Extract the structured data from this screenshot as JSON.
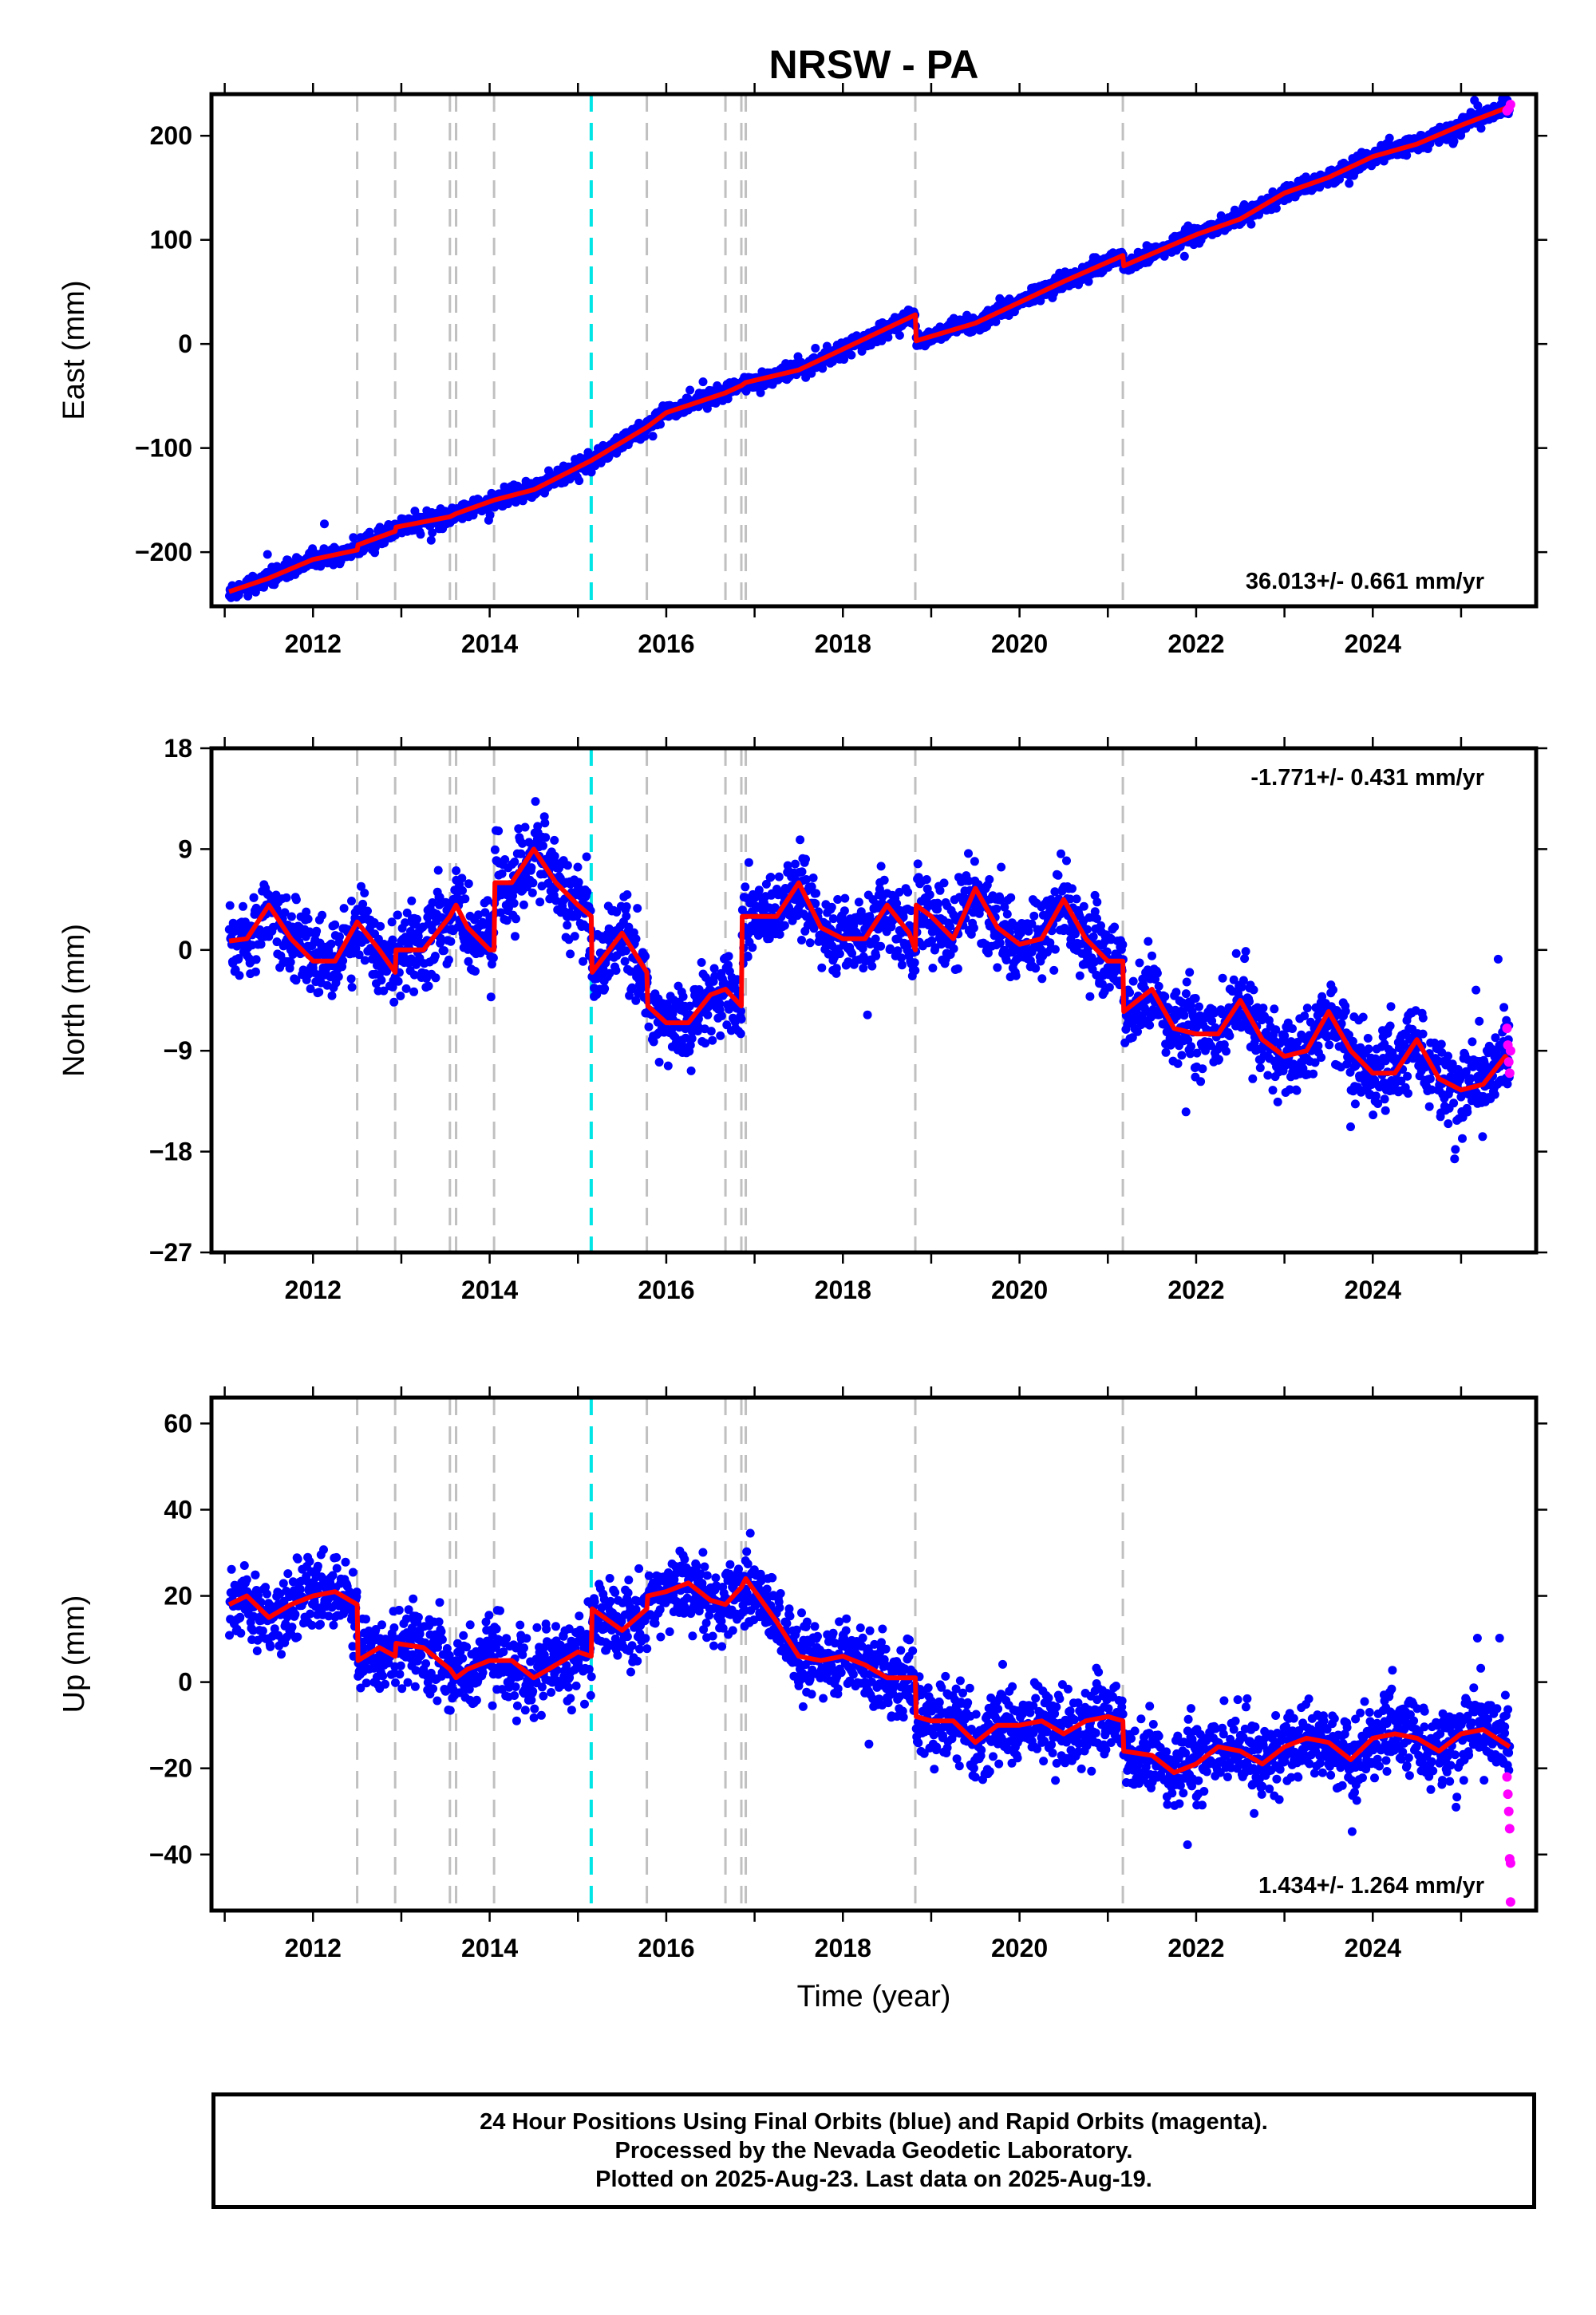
{
  "title": "NRSW - PA",
  "colors": {
    "final_orbits": "#0000ff",
    "rapid_orbits": "#ff00ff",
    "model": "#ff0000",
    "antenna_change": "#00e5e5",
    "equipment_change": "#c0c0c0"
  },
  "footer": {
    "line1": "24 Hour Positions Using Final Orbits (blue) and Rapid Orbits (magenta).",
    "line2": "Processed by the Nevada Geodetic Laboratory.",
    "line3": "Plotted on 2025-Aug-23. Last data on 2025-Aug-19."
  },
  "chart_data": [
    {
      "type": "scatter",
      "component": "East",
      "title": "NRSW - PA",
      "xlabel": "",
      "ylabel": "East (mm)",
      "xlim": [
        2010.85,
        2025.85
      ],
      "ylim": [
        -252,
        240
      ],
      "xticks": [
        "2012",
        "2014",
        "2016",
        "2018",
        "2020",
        "2022",
        "2024"
      ],
      "yticks": [
        "200",
        "100",
        "0",
        "−100",
        "−200"
      ],
      "ytick_values": [
        200,
        100,
        0,
        -100,
        -200
      ],
      "rate_label": "36.013+/- 0.661 mm/yr",
      "rate_position": "bottom-right",
      "data_start": 2011.05,
      "data_end": 2025.55,
      "vlines_gray": [
        2012.5,
        2012.93,
        2013.55,
        2013.62,
        2014.05,
        2015.78,
        2016.67,
        2016.85,
        2016.9,
        2018.82,
        2021.17
      ],
      "vlines_cyan": [
        2015.15
      ],
      "model_points": [
        [
          2011.05,
          -238
        ],
        [
          2011.5,
          -225
        ],
        [
          2012.0,
          -207
        ],
        [
          2012.5,
          -198
        ],
        [
          2012.51,
          -193
        ],
        [
          2012.93,
          -180
        ],
        [
          2012.94,
          -176
        ],
        [
          2013.55,
          -166
        ],
        [
          2013.62,
          -163
        ],
        [
          2014.05,
          -150
        ],
        [
          2014.5,
          -140
        ],
        [
          2015.15,
          -112
        ],
        [
          2015.78,
          -80
        ],
        [
          2016.0,
          -66
        ],
        [
          2016.67,
          -47
        ],
        [
          2016.85,
          -40
        ],
        [
          2016.9,
          -37
        ],
        [
          2017.5,
          -25
        ],
        [
          2018.0,
          -5
        ],
        [
          2018.82,
          28
        ],
        [
          2018.83,
          3
        ],
        [
          2019.5,
          20
        ],
        [
          2020.0,
          40
        ],
        [
          2020.5,
          60
        ],
        [
          2021.17,
          85
        ],
        [
          2021.18,
          75
        ],
        [
          2022.0,
          105
        ],
        [
          2022.5,
          120
        ],
        [
          2023.0,
          145
        ],
        [
          2023.5,
          160
        ],
        [
          2024.0,
          180
        ],
        [
          2024.5,
          192
        ],
        [
          2025.0,
          210
        ],
        [
          2025.55,
          228
        ]
      ],
      "scatter_sigma": 4,
      "rapid_points": [
        [
          2025.52,
          224
        ],
        [
          2025.54,
          226
        ],
        [
          2025.56,
          230
        ]
      ]
    },
    {
      "type": "scatter",
      "component": "North",
      "xlabel": "",
      "ylabel": "North (mm)",
      "xlim": [
        2010.85,
        2025.85
      ],
      "ylim": [
        -27,
        18
      ],
      "xticks": [
        "2012",
        "2014",
        "2016",
        "2018",
        "2020",
        "2022",
        "2024"
      ],
      "yticks": [
        "18",
        "9",
        "0",
        "−9",
        "−18",
        "−27"
      ],
      "ytick_values": [
        18,
        9,
        0,
        -9,
        -18,
        -27
      ],
      "rate_label": "-1.771+/- 0.431 mm/yr",
      "rate_position": "top-right",
      "data_start": 2011.05,
      "data_end": 2025.55,
      "vlines_gray": [
        2012.5,
        2012.93,
        2013.55,
        2013.62,
        2014.05,
        2015.78,
        2016.67,
        2016.85,
        2016.9,
        2018.82,
        2021.17
      ],
      "vlines_cyan": [
        2015.15
      ],
      "model_points": [
        [
          2011.05,
          0.8
        ],
        [
          2011.25,
          1
        ],
        [
          2011.5,
          4
        ],
        [
          2011.75,
          1
        ],
        [
          2012.0,
          -1
        ],
        [
          2012.25,
          -1
        ],
        [
          2012.5,
          2.5
        ],
        [
          2012.75,
          0
        ],
        [
          2012.93,
          -2
        ],
        [
          2012.94,
          0
        ],
        [
          2013.25,
          0
        ],
        [
          2013.55,
          3
        ],
        [
          2013.62,
          4
        ],
        [
          2013.75,
          2
        ],
        [
          2014.0,
          0
        ],
        [
          2014.05,
          0
        ],
        [
          2014.06,
          6
        ],
        [
          2014.25,
          6
        ],
        [
          2014.5,
          9
        ],
        [
          2014.75,
          6
        ],
        [
          2015.0,
          4
        ],
        [
          2015.15,
          3
        ],
        [
          2015.16,
          -2
        ],
        [
          2015.5,
          1.5
        ],
        [
          2015.78,
          -2
        ],
        [
          2015.79,
          -5
        ],
        [
          2016.0,
          -6.5
        ],
        [
          2016.25,
          -6.5
        ],
        [
          2016.5,
          -4
        ],
        [
          2016.67,
          -3.5
        ],
        [
          2016.85,
          -5
        ],
        [
          2016.86,
          3
        ],
        [
          2016.9,
          3
        ],
        [
          2017.25,
          3
        ],
        [
          2017.5,
          6
        ],
        [
          2017.75,
          2
        ],
        [
          2018.0,
          1
        ],
        [
          2018.25,
          1
        ],
        [
          2018.5,
          4
        ],
        [
          2018.75,
          1.5
        ],
        [
          2018.82,
          0
        ],
        [
          2018.83,
          4
        ],
        [
          2019.0,
          3
        ],
        [
          2019.25,
          1
        ],
        [
          2019.5,
          5.5
        ],
        [
          2019.75,
          2
        ],
        [
          2020.0,
          0.5
        ],
        [
          2020.25,
          1
        ],
        [
          2020.5,
          4.5
        ],
        [
          2020.75,
          1
        ],
        [
          2021.0,
          -1
        ],
        [
          2021.17,
          -1
        ],
        [
          2021.18,
          -5.5
        ],
        [
          2021.5,
          -3.5
        ],
        [
          2021.75,
          -7
        ],
        [
          2022.0,
          -7.5
        ],
        [
          2022.25,
          -7.5
        ],
        [
          2022.5,
          -4.5
        ],
        [
          2022.75,
          -8
        ],
        [
          2023.0,
          -9.5
        ],
        [
          2023.25,
          -9
        ],
        [
          2023.5,
          -5.5
        ],
        [
          2023.75,
          -9
        ],
        [
          2024.0,
          -11
        ],
        [
          2024.25,
          -11
        ],
        [
          2024.5,
          -8
        ],
        [
          2024.75,
          -11.5
        ],
        [
          2025.0,
          -12.5
        ],
        [
          2025.25,
          -12
        ],
        [
          2025.5,
          -9.5
        ],
        [
          2025.55,
          -10
        ]
      ],
      "scatter_sigma": 1.8,
      "rapid_points": [
        [
          2025.52,
          -7
        ],
        [
          2025.53,
          -8.5
        ],
        [
          2025.54,
          -10
        ],
        [
          2025.55,
          -11
        ],
        [
          2025.56,
          -9
        ]
      ]
    },
    {
      "type": "scatter",
      "component": "Up",
      "xlabel": "Time (year)",
      "ylabel": "Up (mm)",
      "xlim": [
        2010.85,
        2025.85
      ],
      "ylim": [
        -53,
        66
      ],
      "xticks": [
        "2012",
        "2014",
        "2016",
        "2018",
        "2020",
        "2022",
        "2024"
      ],
      "yticks": [
        "60",
        "40",
        "20",
        "0",
        "−20",
        "−40"
      ],
      "ytick_values": [
        60,
        40,
        20,
        0,
        -20,
        -40
      ],
      "rate_label": "1.434+/- 1.264 mm/yr",
      "rate_position": "bottom-right",
      "data_start": 2011.05,
      "data_end": 2025.55,
      "vlines_gray": [
        2012.5,
        2012.93,
        2013.55,
        2013.62,
        2014.05,
        2015.78,
        2016.67,
        2016.85,
        2016.9,
        2018.82,
        2021.17
      ],
      "vlines_cyan": [
        2015.15
      ],
      "model_points": [
        [
          2011.05,
          18
        ],
        [
          2011.25,
          20
        ],
        [
          2011.5,
          15
        ],
        [
          2011.75,
          18
        ],
        [
          2012.0,
          20
        ],
        [
          2012.25,
          21
        ],
        [
          2012.5,
          18
        ],
        [
          2012.51,
          5
        ],
        [
          2012.75,
          8
        ],
        [
          2012.93,
          6
        ],
        [
          2012.94,
          9
        ],
        [
          2013.25,
          8
        ],
        [
          2013.55,
          3
        ],
        [
          2013.62,
          1
        ],
        [
          2013.75,
          3
        ],
        [
          2014.0,
          5
        ],
        [
          2014.05,
          5
        ],
        [
          2014.25,
          5
        ],
        [
          2014.5,
          1
        ],
        [
          2014.75,
          4
        ],
        [
          2015.0,
          7
        ],
        [
          2015.15,
          6
        ],
        [
          2015.16,
          17
        ],
        [
          2015.5,
          12
        ],
        [
          2015.78,
          17
        ],
        [
          2015.79,
          20
        ],
        [
          2016.0,
          21
        ],
        [
          2016.25,
          23
        ],
        [
          2016.5,
          19
        ],
        [
          2016.67,
          18
        ],
        [
          2016.85,
          22
        ],
        [
          2016.9,
          24
        ],
        [
          2017.25,
          14
        ],
        [
          2017.5,
          6
        ],
        [
          2017.75,
          5
        ],
        [
          2018.0,
          6
        ],
        [
          2018.25,
          4
        ],
        [
          2018.5,
          1
        ],
        [
          2018.82,
          1
        ],
        [
          2018.83,
          -8
        ],
        [
          2019.0,
          -9
        ],
        [
          2019.25,
          -9
        ],
        [
          2019.5,
          -14
        ],
        [
          2019.75,
          -10
        ],
        [
          2020.0,
          -10
        ],
        [
          2020.25,
          -9
        ],
        [
          2020.5,
          -12
        ],
        [
          2020.75,
          -9
        ],
        [
          2021.0,
          -8
        ],
        [
          2021.17,
          -9
        ],
        [
          2021.18,
          -16
        ],
        [
          2021.5,
          -17
        ],
        [
          2021.75,
          -21
        ],
        [
          2022.0,
          -19
        ],
        [
          2022.25,
          -15
        ],
        [
          2022.5,
          -16
        ],
        [
          2022.75,
          -19
        ],
        [
          2023.0,
          -15
        ],
        [
          2023.25,
          -13
        ],
        [
          2023.5,
          -14
        ],
        [
          2023.75,
          -18
        ],
        [
          2024.0,
          -13
        ],
        [
          2024.25,
          -12
        ],
        [
          2024.5,
          -13
        ],
        [
          2024.75,
          -16
        ],
        [
          2025.0,
          -12
        ],
        [
          2025.25,
          -11
        ],
        [
          2025.55,
          -15
        ]
      ],
      "scatter_sigma": 4.5,
      "rapid_points": [
        [
          2025.52,
          -22
        ],
        [
          2025.53,
          -26
        ],
        [
          2025.54,
          -30
        ],
        [
          2025.55,
          -34
        ],
        [
          2025.55,
          -41
        ],
        [
          2025.56,
          -42
        ],
        [
          2025.56,
          -51
        ]
      ]
    }
  ]
}
